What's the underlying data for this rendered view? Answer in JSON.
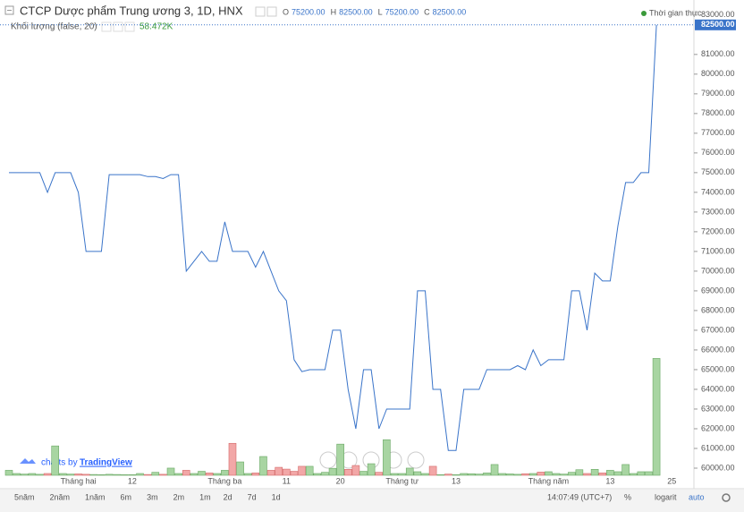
{
  "header": {
    "ohlc": [
      {
        "label": "O",
        "value": "75200.00"
      },
      {
        "label": "H",
        "value": "82500.00"
      },
      {
        "label": "L",
        "value": "75200.00"
      },
      {
        "label": "C",
        "value": "82500.00"
      }
    ],
    "realtime": "Thời gian thực"
  },
  "branding": {
    "prefix": "charts by",
    "name": "TradingView"
  },
  "toolbar": {
    "ranges": [
      "5năm",
      "2năm",
      "1năm",
      "6m",
      "3m",
      "2m",
      "1m",
      "2d",
      "7d",
      "1d"
    ],
    "clock": "14:07:49 (UTC+7)",
    "percent": "%",
    "log": "logarit",
    "auto": "auto"
  },
  "chart_data": {
    "type": "line",
    "title": "CTCP Dược phẩm Trung ương 3, 1D, HNX",
    "color": "#3a74c9",
    "categories": [
      null,
      null,
      null,
      null,
      null,
      null,
      null,
      null,
      null,
      "Tháng hai",
      null,
      null,
      null,
      null,
      null,
      null,
      "12",
      null,
      null,
      null,
      null,
      null,
      null,
      null,
      null,
      null,
      null,
      null,
      "Tháng ba",
      null,
      null,
      null,
      null,
      null,
      null,
      null,
      "11",
      null,
      null,
      null,
      null,
      null,
      null,
      "20",
      null,
      null,
      null,
      null,
      null,
      null,
      null,
      "Tháng tư",
      null,
      null,
      null,
      null,
      null,
      null,
      "13",
      null,
      null,
      null,
      null,
      null,
      null,
      null,
      null,
      null,
      null,
      null,
      "Tháng năm",
      null,
      null,
      null,
      null,
      null,
      null,
      null,
      "13",
      null,
      null,
      null,
      null,
      null,
      null,
      null,
      "25"
    ],
    "values": [
      75000,
      75000,
      75000,
      75000,
      75000,
      74000,
      75000,
      75000,
      75000,
      74000,
      71000,
      71000,
      71000,
      74900,
      74900,
      74900,
      74900,
      74900,
      74800,
      74800,
      74700,
      74900,
      74900,
      70000,
      70500,
      71000,
      70500,
      70500,
      72500,
      71000,
      71000,
      71000,
      70200,
      71000,
      70000,
      69000,
      68500,
      65500,
      64900,
      65000,
      65000,
      65000,
      67000,
      67000,
      64000,
      62000,
      65000,
      65000,
      62000,
      63000,
      63000,
      63000,
      63000,
      69000,
      69000,
      64000,
      64000,
      60900,
      60900,
      64000,
      64000,
      64000,
      65000,
      65000,
      65000,
      65000,
      65200,
      65000,
      66000,
      65200,
      65500,
      65500,
      65500,
      69000,
      69000,
      67000,
      69900,
      69500,
      69500,
      72300,
      74500,
      74500,
      75000,
      75000,
      82500,
      null,
      null
    ],
    "ylim": [
      59000,
      83400
    ],
    "yticks": [
      {
        "value": 60000,
        "label": "60000.00"
      },
      {
        "value": 61000,
        "label": "61000.00"
      },
      {
        "value": 62000,
        "label": "62000.00"
      },
      {
        "value": 63000,
        "label": "63000.00"
      },
      {
        "value": 64000,
        "label": "64000.00"
      },
      {
        "value": 65000,
        "label": "65000.00"
      },
      {
        "value": 66000,
        "label": "66000.00"
      },
      {
        "value": 67000,
        "label": "67000.00"
      },
      {
        "value": 68000,
        "label": "68000.00"
      },
      {
        "value": 69000,
        "label": "69000.00"
      },
      {
        "value": 70000,
        "label": "70000.00"
      },
      {
        "value": 71000,
        "label": "71000.00"
      },
      {
        "value": 72000,
        "label": "72000.00"
      },
      {
        "value": 73000,
        "label": "73000.00"
      },
      {
        "value": 74000,
        "label": "74000.00"
      },
      {
        "value": 75000,
        "label": "75000.00"
      },
      {
        "value": 76000,
        "label": "76000.00"
      },
      {
        "value": 77000,
        "label": "77000.00"
      },
      {
        "value": 78000,
        "label": "78000.00"
      },
      {
        "value": 79000,
        "label": "79000.00"
      },
      {
        "value": 80000,
        "label": "80000.00"
      },
      {
        "value": 81000,
        "label": "81000.00"
      },
      {
        "value": 83000,
        "label": "83000.00"
      }
    ],
    "last_value": {
      "value": 82500,
      "label": "82500.00",
      "color": "#3a74c9"
    },
    "volume": {
      "name": "Khối lượng (false, 20)",
      "last_label": "58.472K",
      "up_color": "#a8d5a2",
      "down_color": "#f2a7a7",
      "ylim": [
        0,
        60000
      ],
      "values": [
        2500,
        900,
        600,
        900,
        500,
        900,
        14700,
        900,
        600,
        700,
        500,
        400,
        300,
        500,
        400,
        300,
        300,
        900,
        400,
        1500,
        500,
        3600,
        900,
        2500,
        900,
        2000,
        1200,
        900,
        2500,
        16000,
        6700,
        900,
        1200,
        9400,
        2500,
        4000,
        3100,
        2000,
        4500,
        4500,
        900,
        1500,
        3500,
        15600,
        3000,
        4900,
        2000,
        5800,
        1500,
        17800,
        900,
        900,
        3600,
        1800,
        900,
        4500,
        300,
        600,
        300,
        900,
        800,
        600,
        1200,
        5400,
        900,
        700,
        500,
        800,
        900,
        1600,
        1800,
        900,
        600,
        1500,
        2800,
        900,
        3000,
        1200,
        2500,
        1800,
        5400,
        900,
        1800,
        1800,
        58472,
        null,
        null
      ]
    }
  }
}
